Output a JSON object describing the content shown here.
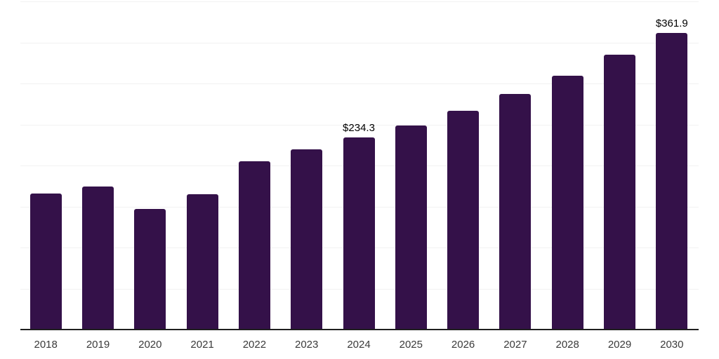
{
  "chart_data": {
    "type": "bar",
    "categories": [
      "2018",
      "2019",
      "2020",
      "2021",
      "2022",
      "2023",
      "2024",
      "2025",
      "2026",
      "2027",
      "2028",
      "2029",
      "2030"
    ],
    "values": [
      165.5,
      174,
      147,
      165,
      205.5,
      219.5,
      234.3,
      249,
      267,
      287,
      309,
      335,
      361.9
    ],
    "data_labels": [
      {
        "index": 6,
        "text": "$234.3"
      },
      {
        "index": 12,
        "text": "$361.9"
      }
    ],
    "ylim": [
      0,
      400
    ],
    "gridline_step": 50,
    "grid": true,
    "legend": false,
    "colors": {
      "bar": "#341149",
      "axis": "#1f1f1f",
      "gridline": "#f2f2f2",
      "data_label_text": "#000000",
      "tick_text": "#3a3a3a",
      "background": "#ffffff"
    }
  }
}
